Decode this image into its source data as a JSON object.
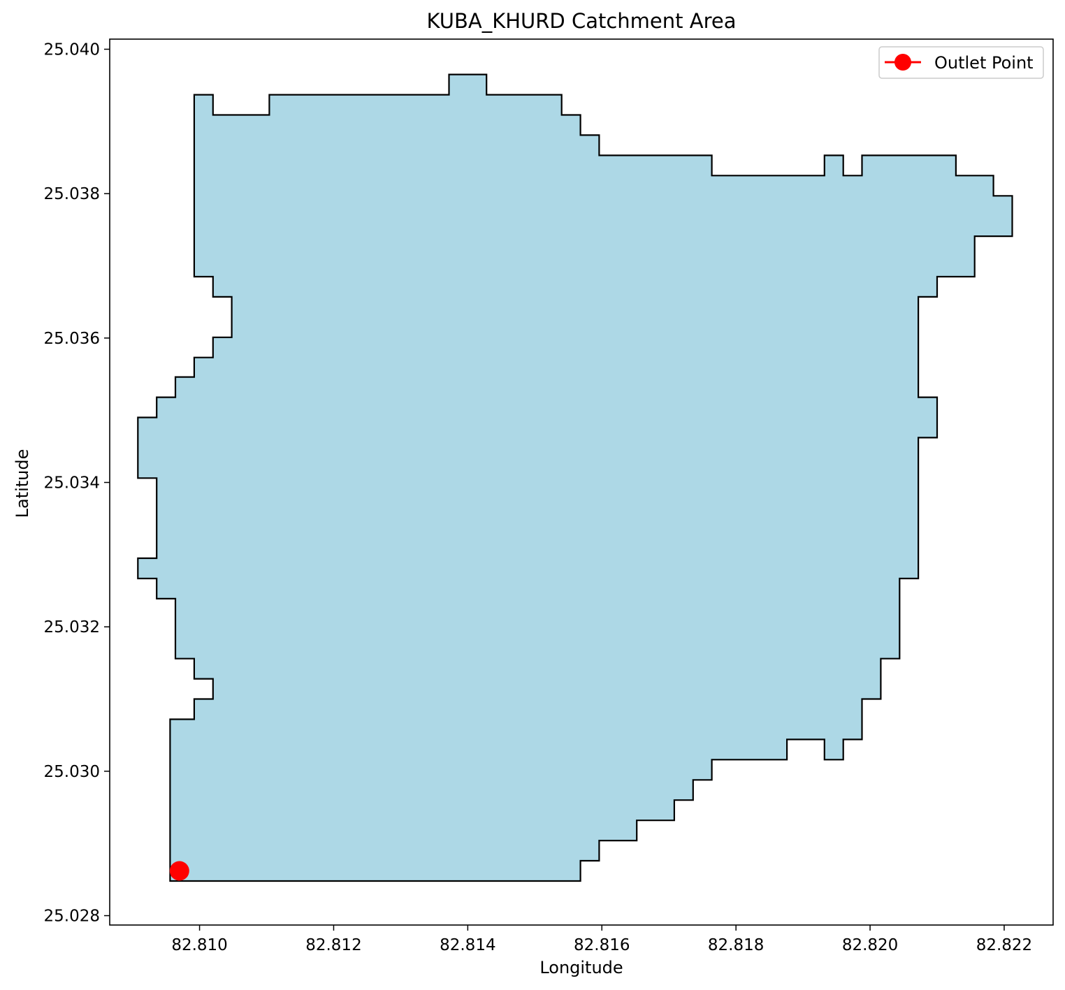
{
  "chart_data": {
    "type": "map",
    "title": "KUBA_KHURD Catchment Area",
    "xlabel": "Longitude",
    "ylabel": "Latitude",
    "xlim": [
      82.80866,
      82.82273
    ],
    "ylim": [
      25.02787,
      25.04014
    ],
    "xticks": [
      82.81,
      82.812,
      82.814,
      82.816,
      82.818,
      82.82,
      82.822
    ],
    "xtick_labels": [
      "82.810",
      "82.812",
      "82.814",
      "82.816",
      "82.818",
      "82.820",
      "82.822"
    ],
    "yticks": [
      25.028,
      25.03,
      25.032,
      25.034,
      25.036,
      25.038,
      25.04
    ],
    "ytick_labels": [
      "25.028",
      "25.030",
      "25.032",
      "25.034",
      "25.036",
      "25.038",
      "25.040"
    ],
    "grid": false,
    "legend": {
      "placement": "top-right",
      "entries": [
        "Outlet Point"
      ]
    },
    "colors": {
      "fill": "#add8e6",
      "edge": "#000000",
      "outlet": "#ff0000"
    },
    "catchment_boundary": [
      [
        82.80956,
        25.02848
      ],
      [
        82.81568,
        25.02848
      ],
      [
        82.81568,
        25.02876
      ],
      [
        82.81596,
        25.02876
      ],
      [
        82.81596,
        25.02904
      ],
      [
        82.81652,
        25.02904
      ],
      [
        82.81652,
        25.02932
      ],
      [
        82.81708,
        25.02932
      ],
      [
        82.81708,
        25.0296
      ],
      [
        82.81736,
        25.0296
      ],
      [
        82.81736,
        25.02988
      ],
      [
        82.81764,
        25.02988
      ],
      [
        82.81764,
        25.03016
      ],
      [
        82.81876,
        25.03016
      ],
      [
        82.81876,
        25.03044
      ],
      [
        82.81932,
        25.03044
      ],
      [
        82.81932,
        25.03016
      ],
      [
        82.8196,
        25.03016
      ],
      [
        82.8196,
        25.03044
      ],
      [
        82.81988,
        25.03044
      ],
      [
        82.81988,
        25.031
      ],
      [
        82.82016,
        25.031
      ],
      [
        82.82016,
        25.03156
      ],
      [
        82.82044,
        25.03156
      ],
      [
        82.82044,
        25.03267
      ],
      [
        82.82072,
        25.03267
      ],
      [
        82.82072,
        25.03462
      ],
      [
        82.821,
        25.03462
      ],
      [
        82.821,
        25.03518
      ],
      [
        82.82072,
        25.03518
      ],
      [
        82.82072,
        25.03657
      ],
      [
        82.821,
        25.03657
      ],
      [
        82.821,
        25.03685
      ],
      [
        82.82156,
        25.03685
      ],
      [
        82.82156,
        25.03741
      ],
      [
        82.82212,
        25.03741
      ],
      [
        82.82212,
        25.03797
      ],
      [
        82.82184,
        25.03797
      ],
      [
        82.82184,
        25.03825
      ],
      [
        82.82128,
        25.03825
      ],
      [
        82.82128,
        25.03853
      ],
      [
        82.81988,
        25.03853
      ],
      [
        82.81988,
        25.03825
      ],
      [
        82.8196,
        25.03825
      ],
      [
        82.8196,
        25.03853
      ],
      [
        82.81932,
        25.03853
      ],
      [
        82.81932,
        25.03825
      ],
      [
        82.81764,
        25.03825
      ],
      [
        82.81764,
        25.03853
      ],
      [
        82.81596,
        25.03853
      ],
      [
        82.81596,
        25.03881
      ],
      [
        82.81568,
        25.03881
      ],
      [
        82.81568,
        25.03909
      ],
      [
        82.8154,
        25.03909
      ],
      [
        82.8154,
        25.03937
      ],
      [
        82.81428,
        25.03937
      ],
      [
        82.81428,
        25.03965
      ],
      [
        82.81372,
        25.03965
      ],
      [
        82.81372,
        25.03937
      ],
      [
        82.81104,
        25.03937
      ],
      [
        82.81104,
        25.03909
      ],
      [
        82.8102,
        25.03909
      ],
      [
        82.8102,
        25.03937
      ],
      [
        82.80992,
        25.03937
      ],
      [
        82.80992,
        25.03685
      ],
      [
        82.8102,
        25.03685
      ],
      [
        82.8102,
        25.03657
      ],
      [
        82.81048,
        25.03657
      ],
      [
        82.81048,
        25.03601
      ],
      [
        82.8102,
        25.03601
      ],
      [
        82.8102,
        25.03573
      ],
      [
        82.80992,
        25.03573
      ],
      [
        82.80992,
        25.03546
      ],
      [
        82.80964,
        25.03546
      ],
      [
        82.80964,
        25.03518
      ],
      [
        82.80936,
        25.03518
      ],
      [
        82.80936,
        25.0349
      ],
      [
        82.80908,
        25.0349
      ],
      [
        82.80908,
        25.03406
      ],
      [
        82.80936,
        25.03406
      ],
      [
        82.80936,
        25.03295
      ],
      [
        82.80908,
        25.03295
      ],
      [
        82.80908,
        25.03267
      ],
      [
        82.80936,
        25.03267
      ],
      [
        82.80936,
        25.03239
      ],
      [
        82.80964,
        25.03239
      ],
      [
        82.80964,
        25.03156
      ],
      [
        82.80992,
        25.03156
      ],
      [
        82.80992,
        25.03128
      ],
      [
        82.8102,
        25.03128
      ],
      [
        82.8102,
        25.031
      ],
      [
        82.80992,
        25.031
      ],
      [
        82.80992,
        25.03072
      ],
      [
        82.80956,
        25.03072
      ],
      [
        82.80956,
        25.02848
      ]
    ],
    "outlet_point": {
      "label": "Outlet Point",
      "x": 82.8097,
      "y": 25.02862
    }
  }
}
